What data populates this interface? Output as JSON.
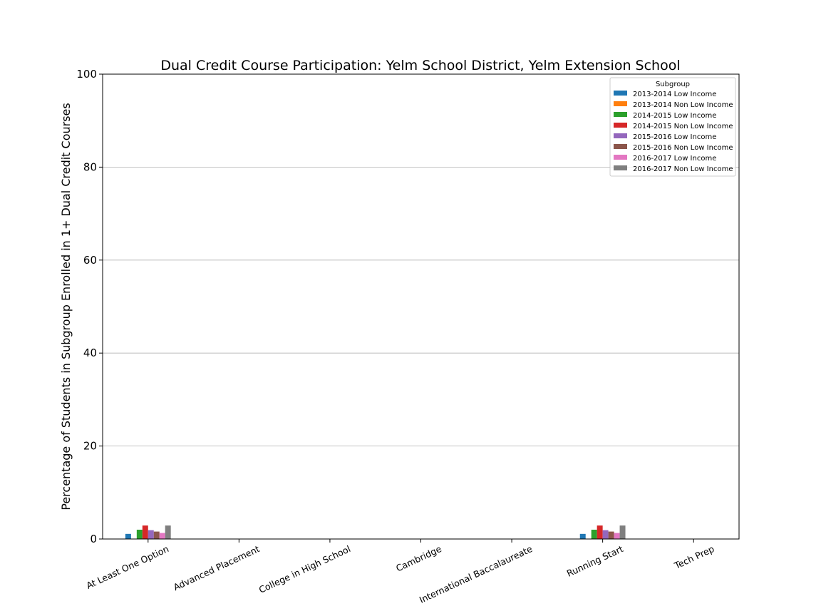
{
  "chart_data": {
    "type": "bar",
    "title": "Dual Credit Course Participation: Yelm School District, Yelm Extension School",
    "xlabel": "",
    "ylabel": "Percentage of Students in Subgroup Enrolled in 1+ Dual Credit Courses",
    "ylim": [
      0,
      100
    ],
    "yticks": [
      "0",
      "20",
      "40",
      "60",
      "80",
      "100"
    ],
    "grid": "horizontal",
    "legend_title": "Subgroup",
    "legend_position": "top-right",
    "categories": [
      "At Least One Option",
      "Advanced Placement",
      "College in High School",
      "Cambridge",
      "International Baccalaureate",
      "Running Start",
      "Tech Prep"
    ],
    "series": [
      {
        "name": "2013-2014 Low Income",
        "color": "#1f77b4",
        "values": [
          1.1,
          0,
          0,
          0,
          0,
          1.1,
          0
        ]
      },
      {
        "name": "2013-2014 Non Low Income",
        "color": "#ff7f0e",
        "values": [
          0,
          0,
          0,
          0,
          0,
          0,
          0
        ]
      },
      {
        "name": "2014-2015 Low Income",
        "color": "#2ca02c",
        "values": [
          2.0,
          0,
          0,
          0,
          0,
          2.0,
          0
        ]
      },
      {
        "name": "2014-2015 Non Low Income",
        "color": "#d62728",
        "values": [
          2.9,
          0,
          0,
          0,
          0,
          2.9,
          0
        ]
      },
      {
        "name": "2015-2016 Low Income",
        "color": "#9467bd",
        "values": [
          1.9,
          0,
          0,
          0,
          0,
          1.9,
          0
        ]
      },
      {
        "name": "2015-2016 Non Low Income",
        "color": "#8c564b",
        "values": [
          1.6,
          0,
          0,
          0,
          0,
          1.6,
          0
        ]
      },
      {
        "name": "2016-2017 Low Income",
        "color": "#e377c2",
        "values": [
          1.3,
          0,
          0,
          0,
          0,
          1.3,
          0
        ]
      },
      {
        "name": "2016-2017 Non Low Income",
        "color": "#7f7f7f",
        "values": [
          2.9,
          0,
          0,
          0,
          0,
          2.9,
          0
        ]
      }
    ]
  }
}
